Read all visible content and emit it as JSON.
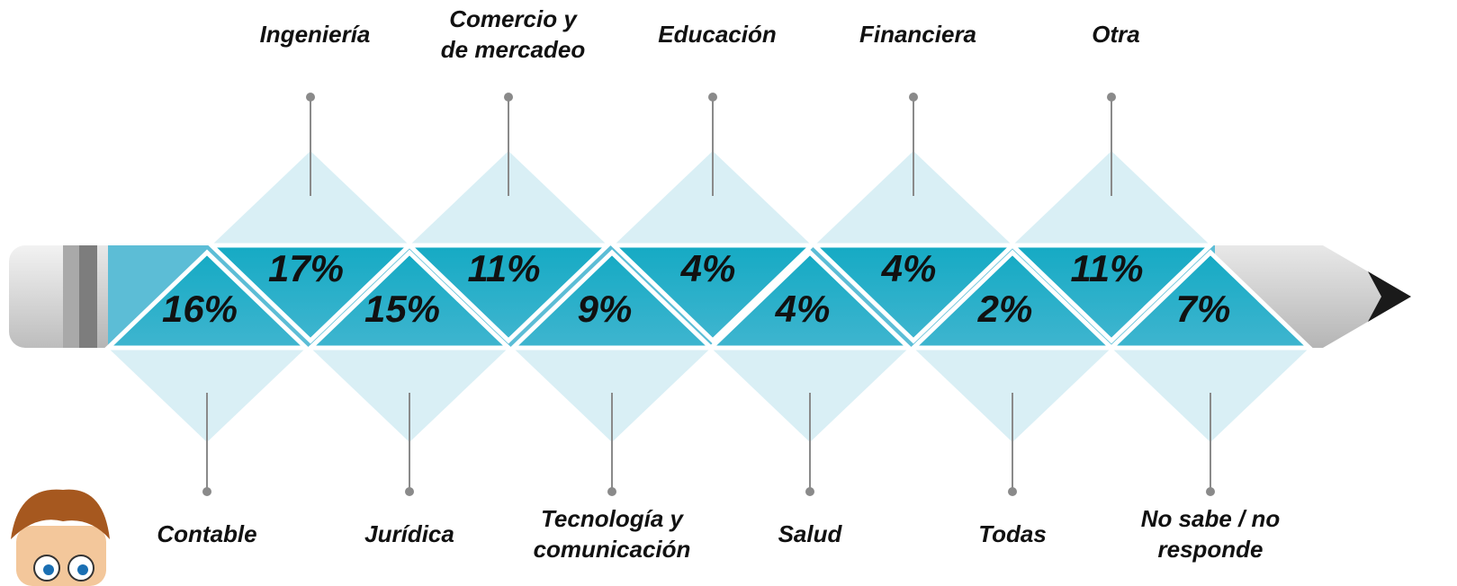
{
  "top": [
    {
      "label": [
        "Ingeniería"
      ],
      "value": "17%"
    },
    {
      "label": [
        "Comercio y",
        "de mercadeo"
      ],
      "value": "11%"
    },
    {
      "label": [
        "Educación"
      ],
      "value": "4%"
    },
    {
      "label": [
        "Financiera"
      ],
      "value": "4%"
    },
    {
      "label": [
        "Otra"
      ],
      "value": "11%"
    }
  ],
  "bottom": [
    {
      "label": [
        "Contable"
      ],
      "value": "16%"
    },
    {
      "label": [
        "Jurídica"
      ],
      "value": "15%"
    },
    {
      "label": [
        "Tecnología y",
        "comunicación"
      ],
      "value": "9%"
    },
    {
      "label": [
        "Salud"
      ],
      "value": "4%"
    },
    {
      "label": [
        "Todas"
      ],
      "value": "2%"
    },
    {
      "label": [
        "No sabe / no",
        "responde"
      ],
      "value": "7%"
    }
  ]
}
